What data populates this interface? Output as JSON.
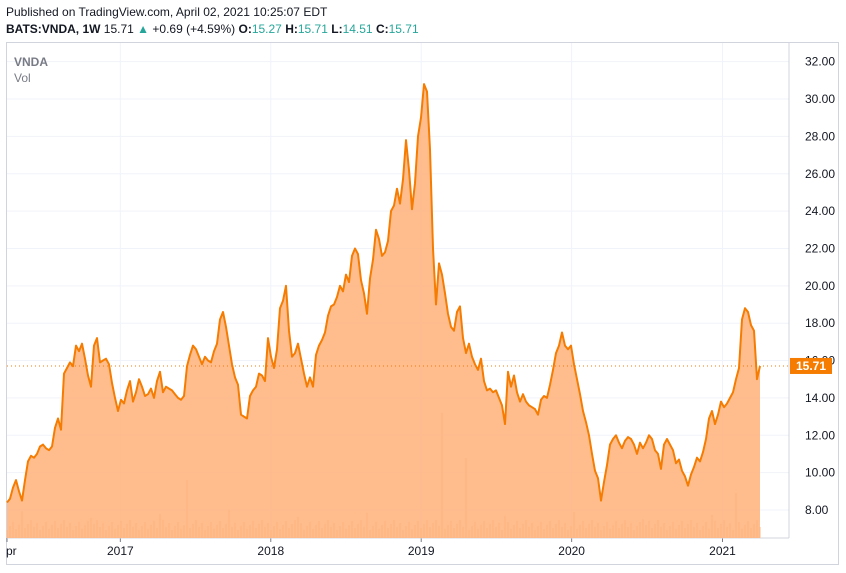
{
  "header": {
    "published": "Published on TradingView.com, April 02, 2021 10:25:07 EDT",
    "symbol": "BATS:VNDA, 1W",
    "last": "15.71",
    "change": "+0.69 (+4.59%)",
    "o_label": "O:",
    "o": "15.27",
    "h_label": "H:",
    "h": "15.71",
    "l_label": "L:",
    "l": "14.51",
    "c_label": "C:",
    "c": "15.71"
  },
  "legend": {
    "ticker": "VNDA",
    "vol": "Vol"
  },
  "colors": {
    "line": "#f57c00",
    "fill": "#ffb27a",
    "volume": "#f8c7a2",
    "last_price_tag": "#f57c00"
  },
  "chart_data": {
    "type": "area",
    "x_ticks": [
      "pr",
      "2017",
      "2018",
      "2019",
      "2020",
      "2021"
    ],
    "y_ticks": [
      "8.00",
      "10.00",
      "12.00",
      "14.00",
      "16.00",
      "18.00",
      "20.00",
      "22.00",
      "24.00",
      "26.00",
      "28.00",
      "30.00",
      "32.00"
    ],
    "ylim": [
      6.5,
      33
    ],
    "last_price": 15.71,
    "last_price_label": "15.71",
    "x_start": "2016-04-01",
    "x_end": "2021-04-02",
    "series": [
      {
        "values": [
          8.4,
          8.6,
          9.2,
          9.6,
          9.0,
          8.5,
          9.6,
          10.6,
          10.9,
          10.8,
          11.0,
          11.4,
          11.5,
          11.3,
          11.2,
          11.4,
          12.4,
          12.9,
          12.3,
          15.3,
          15.6,
          15.9,
          15.7,
          16.8,
          16.5,
          16.9,
          16.1,
          15.2,
          14.6,
          16.8,
          17.2,
          15.9,
          16.0,
          16.1,
          15.8,
          14.8,
          14.0,
          13.3,
          13.9,
          13.7,
          14.4,
          14.9,
          13.8,
          14.3,
          15.0,
          14.6,
          14.1,
          14.2,
          14.5,
          14.0,
          14.9,
          15.4,
          14.3,
          14.6,
          14.5,
          14.4,
          14.2,
          14.0,
          13.9,
          14.1,
          15.7,
          16.3,
          16.8,
          16.6,
          16.2,
          15.8,
          16.2,
          16.0,
          15.9,
          16.5,
          16.9,
          18.2,
          18.6,
          17.8,
          16.8,
          15.8,
          15.1,
          14.7,
          13.1,
          13.0,
          12.9,
          14.1,
          14.4,
          14.6,
          15.3,
          15.2,
          14.9,
          17.2,
          16.2,
          15.6,
          16.6,
          18.8,
          19.2,
          20.0,
          17.6,
          16.2,
          16.4,
          16.9,
          16.1,
          15.3,
          14.6,
          15.1,
          14.6,
          16.3,
          16.8,
          17.1,
          17.5,
          18.4,
          18.9,
          19.0,
          19.4,
          20.0,
          19.7,
          20.6,
          20.2,
          21.6,
          22.0,
          21.7,
          20.3,
          19.6,
          18.5,
          20.4,
          21.4,
          23.0,
          22.5,
          21.6,
          21.8,
          22.4,
          24.0,
          24.3,
          25.2,
          24.4,
          25.7,
          27.8,
          26.2,
          24.1,
          25.5,
          28.0,
          29.0,
          30.8,
          30.4,
          27.3,
          22.0,
          19.0,
          21.2,
          20.6,
          19.6,
          18.5,
          17.8,
          17.6,
          18.6,
          18.9,
          17.2,
          16.4,
          16.9,
          16.2,
          15.8,
          15.5,
          16.1,
          14.9,
          14.4,
          14.5,
          14.3,
          14.4,
          14.0,
          13.6,
          12.6,
          15.4,
          14.6,
          15.2,
          14.3,
          13.8,
          14.2,
          13.8,
          13.6,
          13.5,
          13.4,
          13.1,
          13.9,
          14.1,
          14.0,
          14.7,
          15.5,
          16.4,
          16.8,
          17.5,
          16.8,
          16.6,
          16.8,
          15.8,
          15.0,
          14.2,
          13.3,
          12.7,
          12.0,
          11.0,
          10.1,
          9.7,
          8.5,
          9.5,
          10.4,
          11.5,
          11.8,
          12.0,
          11.6,
          11.3,
          11.7,
          11.9,
          11.8,
          11.5,
          11.0,
          11.6,
          11.3,
          11.6,
          12.0,
          11.8,
          11.2,
          11.0,
          10.2,
          11.5,
          11.8,
          11.5,
          11.2,
          10.5,
          10.7,
          10.1,
          9.8,
          9.3,
          9.9,
          10.3,
          10.8,
          10.6,
          11.1,
          11.8,
          12.9,
          13.3,
          12.6,
          13.1,
          13.8,
          13.5,
          13.7,
          14.0,
          14.3,
          15.0,
          15.6,
          18.2,
          18.8,
          18.6,
          17.9,
          17.6,
          15.0,
          15.71
        ]
      }
    ],
    "volume_note": "bars"
  }
}
